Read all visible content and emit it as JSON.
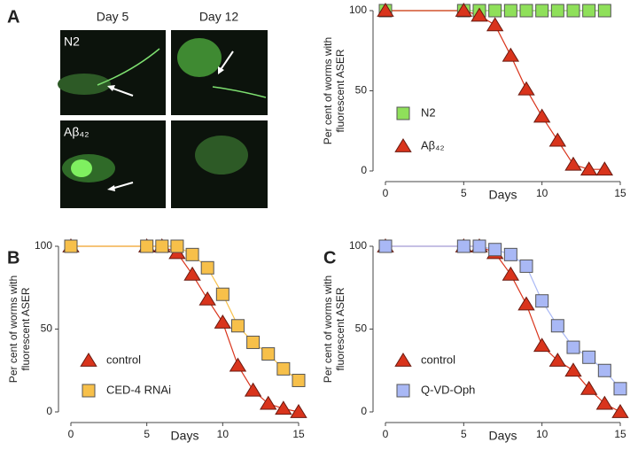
{
  "images": {
    "columns": [
      "Day 5",
      "Day 12"
    ],
    "rows": [
      "N2",
      "Aβ₄₂"
    ]
  },
  "chart_data": [
    {
      "type": "line",
      "panel_label": "A",
      "x_label": "Days",
      "y_label": [
        "Per cent of worms with",
        "fluorescent ASER"
      ],
      "x": [
        0,
        5,
        6,
        7,
        8,
        9,
        10,
        11,
        12,
        13,
        14
      ],
      "xlim": [
        0,
        15
      ],
      "xticks": [
        0,
        5,
        10,
        15
      ],
      "ylim": [
        0,
        100
      ],
      "yticks": [
        0,
        50,
        100
      ],
      "legend": "lower left",
      "series": [
        {
          "name": "N2",
          "color": "#8fe05a",
          "marker": "square",
          "values": [
            100,
            100,
            100,
            100,
            100,
            100,
            100,
            100,
            100,
            100,
            100
          ]
        },
        {
          "name": "Aβ₄₂",
          "color": "#d9341c",
          "marker": "triangle",
          "values": [
            100,
            100,
            97,
            91,
            72,
            51,
            34,
            19,
            4,
            1,
            1
          ]
        }
      ]
    },
    {
      "type": "line",
      "panel_label": "B",
      "x_label": "Days",
      "y_label": [
        "Per cent of worms with",
        "fluorescent ASER"
      ],
      "x": [
        0,
        5,
        6,
        7,
        8,
        9,
        10,
        11,
        12,
        13,
        14,
        15
      ],
      "xlim": [
        0,
        15
      ],
      "xticks": [
        0,
        5,
        10,
        15
      ],
      "ylim": [
        0,
        100
      ],
      "yticks": [
        0,
        50,
        100
      ],
      "legend": "lower left",
      "series": [
        {
          "name": "control",
          "color": "#d9341c",
          "marker": "triangle",
          "values": [
            100,
            100,
            100,
            96,
            83,
            68,
            54,
            28,
            13,
            5,
            2,
            0
          ]
        },
        {
          "name": "CED-4 RNAi",
          "color": "#f7c04a",
          "marker": "square",
          "values": [
            100,
            100,
            100,
            100,
            95,
            87,
            71,
            52,
            42,
            35,
            26,
            19
          ]
        }
      ]
    },
    {
      "type": "line",
      "panel_label": "C",
      "x_label": "Days",
      "y_label": [
        "Per cent of worms with",
        "fluorescent ASER"
      ],
      "x": [
        0,
        5,
        6,
        7,
        8,
        9,
        10,
        11,
        12,
        13,
        14,
        15
      ],
      "xlim": [
        0,
        15
      ],
      "xticks": [
        0,
        5,
        10,
        15
      ],
      "ylim": [
        0,
        100
      ],
      "yticks": [
        0,
        50,
        100
      ],
      "legend": "lower left",
      "series": [
        {
          "name": "control",
          "color": "#d9341c",
          "marker": "triangle",
          "values": [
            100,
            100,
            100,
            96,
            83,
            65,
            40,
            31,
            25,
            14,
            5,
            0
          ]
        },
        {
          "name": "Q-VD-Oph",
          "color": "#a9b8f5",
          "marker": "square",
          "values": [
            100,
            100,
            100,
            98,
            95,
            88,
            67,
            52,
            39,
            33,
            25,
            14
          ]
        }
      ]
    }
  ]
}
